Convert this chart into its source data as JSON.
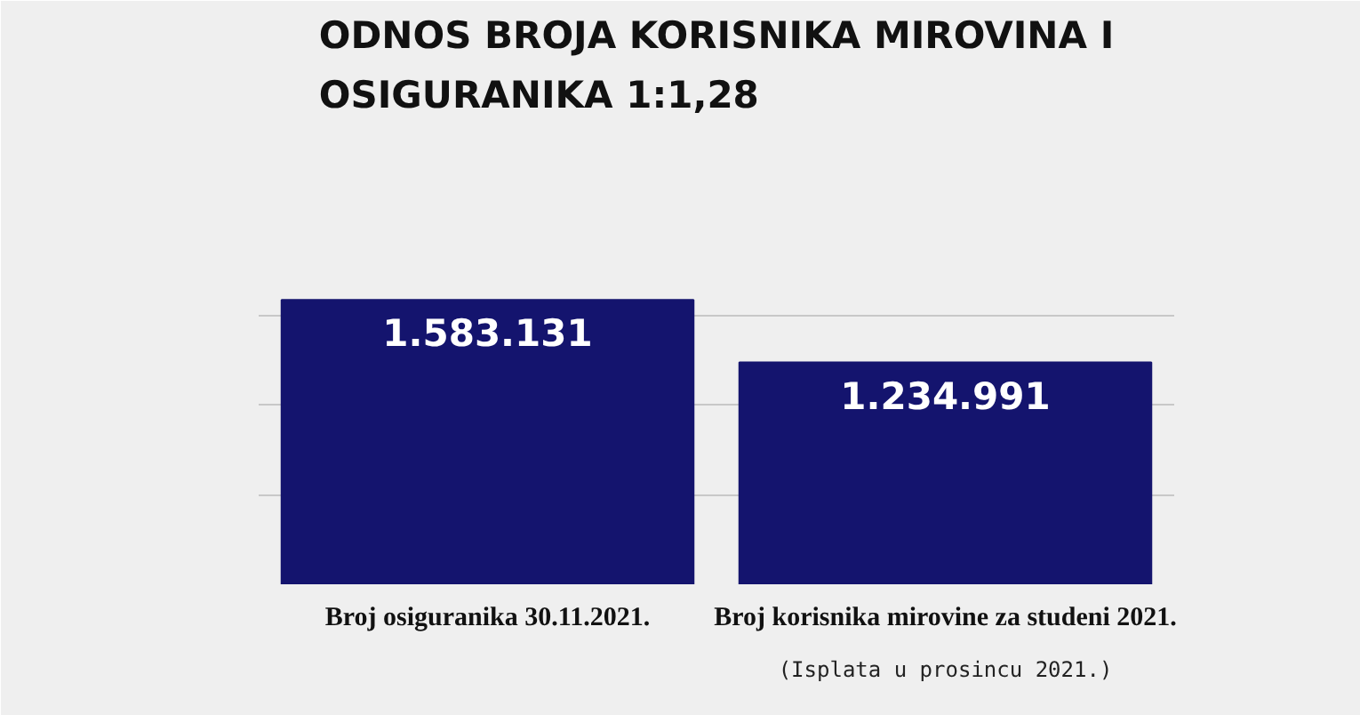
{
  "chart_data": {
    "type": "bar",
    "title": "ODNOS BROJA KORISNIKA MIROVINA I OSIGURANIKA 1:1,28",
    "categories": [
      "Broj osiguranika 30.11.2021.",
      "Broj korisnika mirovine za studeni 2021."
    ],
    "values": [
      1583131,
      1234991
    ],
    "color": "#14146e",
    "value_labels": [
      "1.583.131",
      "1.234.991"
    ],
    "ylim": [
      0,
      2000000
    ],
    "yticks": [
      {
        "value": 0,
        "label": null
      },
      {
        "value": 500000,
        "label": null
      },
      {
        "value": 1000000,
        "label": null
      },
      {
        "value": 1500000,
        "label": null
      },
      {
        "value": 2000000,
        "label": null
      }
    ],
    "grid": "y",
    "tick_labels": "x",
    "annotations": [
      "(Isplata u prosincu 2021.)"
    ]
  }
}
